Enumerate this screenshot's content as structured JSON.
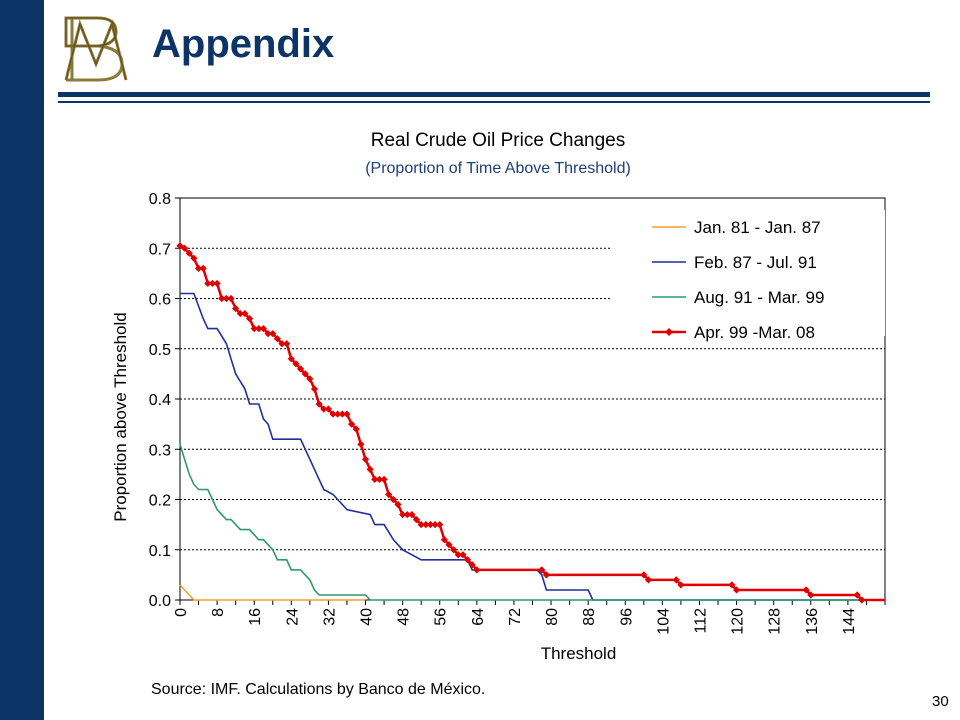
{
  "slide": {
    "title": "Appendix",
    "source": "Source: IMF. Calculations by Banco de México.",
    "page_number": "30",
    "colors": {
      "brand": "#0b3566",
      "logo": "#8b7a3a"
    }
  },
  "chart_data": {
    "type": "line",
    "title": "Real Crude Oil Price Changes",
    "subtitle": "(Proportion of Time Above Threshold)",
    "xlabel": "Threshold",
    "ylabel": "Proportion above Threshold",
    "xlim": [
      0,
      152
    ],
    "ylim": [
      0,
      0.8
    ],
    "xticks": [
      0,
      8,
      16,
      24,
      32,
      40,
      48,
      56,
      64,
      72,
      80,
      88,
      96,
      104,
      112,
      120,
      128,
      136,
      144
    ],
    "yticks": [
      "0.0",
      "0.1",
      "0.2",
      "0.3",
      "0.4",
      "0.5",
      "0.6",
      "0.7",
      "0.8"
    ],
    "grid": "horizontal dashed",
    "legend_position": "top-right",
    "series": [
      {
        "name": "Jan. 81 - Jan. 87",
        "color": "#f0a030",
        "marker": "none",
        "points": [
          [
            0,
            0.03
          ],
          [
            1,
            0.02
          ],
          [
            2,
            0.01
          ],
          [
            3,
            0.0
          ],
          [
            40,
            0.0
          ]
        ]
      },
      {
        "name": "Feb. 87 - Jul. 91",
        "color": "#1f2fa0",
        "marker": "none",
        "points": [
          [
            0,
            0.61
          ],
          [
            3,
            0.61
          ],
          [
            5,
            0.56
          ],
          [
            6,
            0.54
          ],
          [
            8,
            0.54
          ],
          [
            10,
            0.51
          ],
          [
            11,
            0.48
          ],
          [
            12,
            0.45
          ],
          [
            14,
            0.42
          ],
          [
            15,
            0.39
          ],
          [
            17,
            0.39
          ],
          [
            18,
            0.36
          ],
          [
            19,
            0.35
          ],
          [
            20,
            0.32
          ],
          [
            26,
            0.32
          ],
          [
            28,
            0.28
          ],
          [
            30,
            0.24
          ],
          [
            31,
            0.22
          ],
          [
            33,
            0.21
          ],
          [
            34,
            0.2
          ],
          [
            36,
            0.18
          ],
          [
            41,
            0.17
          ],
          [
            42,
            0.15
          ],
          [
            44,
            0.15
          ],
          [
            46,
            0.12
          ],
          [
            48,
            0.1
          ],
          [
            50,
            0.09
          ],
          [
            52,
            0.08
          ],
          [
            62,
            0.08
          ],
          [
            63,
            0.06
          ],
          [
            77,
            0.06
          ],
          [
            78,
            0.05
          ],
          [
            79,
            0.02
          ],
          [
            88,
            0.02
          ],
          [
            89,
            0.0
          ],
          [
            152,
            0.0
          ]
        ]
      },
      {
        "name": "Aug. 91 - Mar. 99",
        "color": "#2e9a68",
        "marker": "none",
        "points": [
          [
            0,
            0.31
          ],
          [
            1,
            0.28
          ],
          [
            2,
            0.25
          ],
          [
            3,
            0.23
          ],
          [
            4,
            0.22
          ],
          [
            6,
            0.22
          ],
          [
            7,
            0.2
          ],
          [
            8,
            0.18
          ],
          [
            9,
            0.17
          ],
          [
            10,
            0.16
          ],
          [
            11,
            0.16
          ],
          [
            12,
            0.15
          ],
          [
            13,
            0.14
          ],
          [
            15,
            0.14
          ],
          [
            16,
            0.13
          ],
          [
            17,
            0.12
          ],
          [
            18,
            0.12
          ],
          [
            19,
            0.11
          ],
          [
            20,
            0.1
          ],
          [
            21,
            0.08
          ],
          [
            23,
            0.08
          ],
          [
            24,
            0.06
          ],
          [
            26,
            0.06
          ],
          [
            28,
            0.04
          ],
          [
            29,
            0.02
          ],
          [
            30,
            0.01
          ],
          [
            40,
            0.01
          ],
          [
            41,
            0.0
          ],
          [
            152,
            0.0
          ]
        ]
      },
      {
        "name": "Apr. 99 -Mar. 08",
        "color": "#e00000",
        "marker": "diamond",
        "points": [
          [
            0,
            0.705
          ],
          [
            1,
            0.7
          ],
          [
            2,
            0.69
          ],
          [
            3,
            0.68
          ],
          [
            4,
            0.66
          ],
          [
            5,
            0.66
          ],
          [
            6,
            0.63
          ],
          [
            7,
            0.63
          ],
          [
            8,
            0.63
          ],
          [
            9,
            0.6
          ],
          [
            10,
            0.6
          ],
          [
            11,
            0.6
          ],
          [
            12,
            0.58
          ],
          [
            13,
            0.57
          ],
          [
            14,
            0.57
          ],
          [
            15,
            0.56
          ],
          [
            16,
            0.54
          ],
          [
            17,
            0.54
          ],
          [
            18,
            0.54
          ],
          [
            19,
            0.53
          ],
          [
            20,
            0.53
          ],
          [
            21,
            0.52
          ],
          [
            22,
            0.51
          ],
          [
            23,
            0.51
          ],
          [
            24,
            0.48
          ],
          [
            25,
            0.47
          ],
          [
            26,
            0.46
          ],
          [
            27,
            0.45
          ],
          [
            28,
            0.44
          ],
          [
            29,
            0.42
          ],
          [
            30,
            0.39
          ],
          [
            31,
            0.38
          ],
          [
            32,
            0.38
          ],
          [
            33,
            0.37
          ],
          [
            34,
            0.37
          ],
          [
            35,
            0.37
          ],
          [
            36,
            0.37
          ],
          [
            37,
            0.35
          ],
          [
            38,
            0.34
          ],
          [
            39,
            0.31
          ],
          [
            40,
            0.28
          ],
          [
            41,
            0.26
          ],
          [
            42,
            0.24
          ],
          [
            43,
            0.24
          ],
          [
            44,
            0.24
          ],
          [
            45,
            0.21
          ],
          [
            46,
            0.2
          ],
          [
            47,
            0.19
          ],
          [
            48,
            0.17
          ],
          [
            49,
            0.17
          ],
          [
            50,
            0.17
          ],
          [
            51,
            0.16
          ],
          [
            52,
            0.15
          ],
          [
            53,
            0.15
          ],
          [
            54,
            0.15
          ],
          [
            55,
            0.15
          ],
          [
            56,
            0.15
          ],
          [
            57,
            0.12
          ],
          [
            58,
            0.11
          ],
          [
            59,
            0.1
          ],
          [
            60,
            0.09
          ],
          [
            61,
            0.09
          ],
          [
            62,
            0.08
          ],
          [
            63,
            0.07
          ],
          [
            64,
            0.06
          ],
          [
            78,
            0.06
          ],
          [
            79,
            0.05
          ],
          [
            100,
            0.05
          ],
          [
            101,
            0.04
          ],
          [
            107,
            0.04
          ],
          [
            108,
            0.03
          ],
          [
            119,
            0.03
          ],
          [
            120,
            0.02
          ],
          [
            135,
            0.02
          ],
          [
            136,
            0.01
          ],
          [
            146,
            0.01
          ],
          [
            147,
            0.0
          ],
          [
            152,
            0.0
          ]
        ]
      }
    ]
  }
}
